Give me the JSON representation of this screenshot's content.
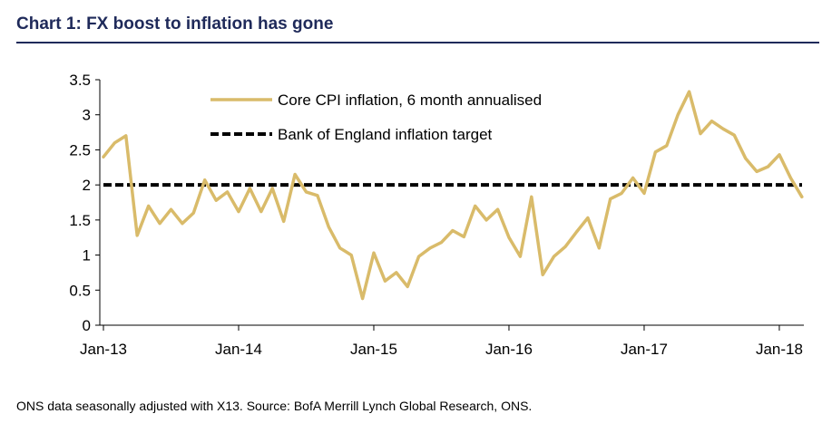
{
  "title": "Chart 1: FX boost to inflation has gone",
  "source": "ONS data seasonally adjusted with X13. Source: BofA Merrill Lynch Global Research, ONS.",
  "chart_data": {
    "type": "line",
    "title": "Chart 1: FX boost to inflation has gone",
    "xlabel": "",
    "ylabel": "",
    "ylim": [
      0,
      3.5
    ],
    "y_ticks": [
      0,
      0.5,
      1,
      1.5,
      2,
      2.5,
      3,
      3.5
    ],
    "y_tick_labels": [
      "0",
      "0.5",
      "1",
      "1.5",
      "2",
      "2.5",
      "3",
      "3.5"
    ],
    "x_tick_labels": [
      "Jan-13",
      "Jan-14",
      "Jan-15",
      "Jan-16",
      "Jan-17",
      "Jan-18"
    ],
    "x_tick_index": [
      0,
      12,
      24,
      36,
      48,
      60
    ],
    "legend_position": "top-center",
    "grid": false,
    "series": [
      {
        "name": "Core CPI inflation, 6 month annualised",
        "color": "#d9bb6a",
        "style": "solid",
        "values": [
          2.4,
          2.6,
          2.7,
          1.28,
          1.7,
          1.45,
          1.65,
          1.45,
          1.6,
          2.07,
          1.78,
          1.9,
          1.62,
          1.95,
          1.62,
          1.95,
          1.48,
          2.15,
          1.9,
          1.85,
          1.4,
          1.1,
          1.0,
          0.38,
          1.03,
          0.63,
          0.75,
          0.55,
          0.98,
          1.1,
          1.18,
          1.35,
          1.26,
          1.7,
          1.5,
          1.65,
          1.25,
          0.98,
          1.83,
          0.72,
          0.98,
          1.12,
          1.33,
          1.53,
          1.1,
          1.8,
          1.88,
          2.1,
          1.88,
          2.47,
          2.56,
          3.0,
          3.33,
          2.73,
          2.91,
          2.8,
          2.71,
          2.38,
          2.19,
          2.26,
          2.43,
          2.1,
          1.83
        ]
      },
      {
        "name": "Bank of England inflation target",
        "color": "#000000",
        "style": "dashed",
        "values": [
          2,
          2
        ]
      }
    ]
  }
}
